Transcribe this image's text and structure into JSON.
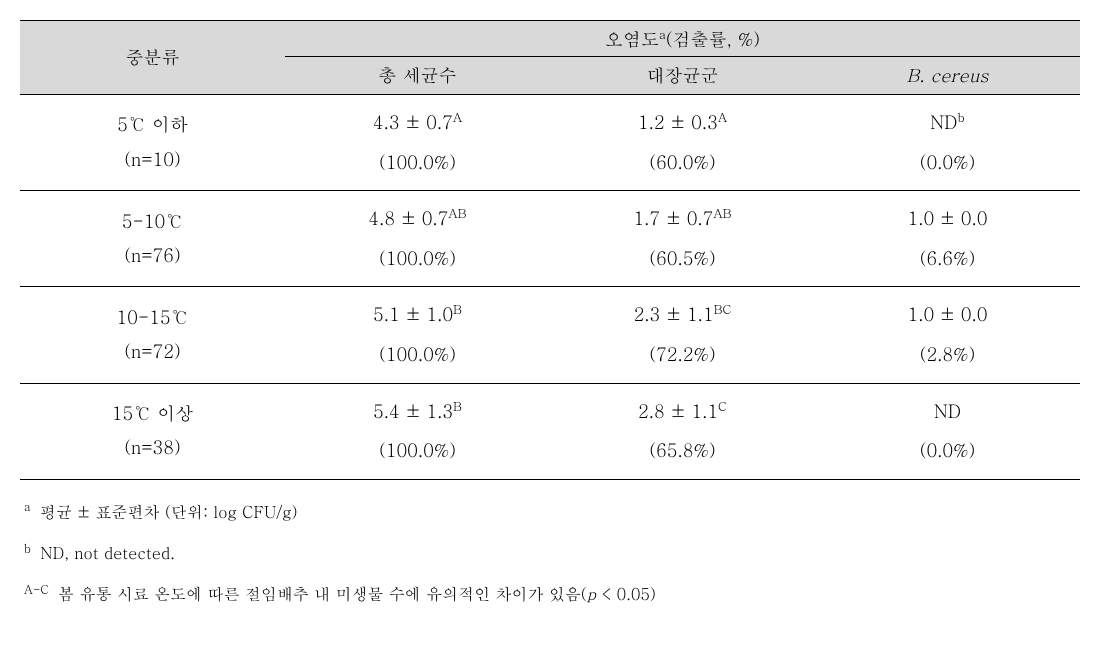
{
  "table": {
    "header": {
      "rowspan_label": "중분류",
      "group_label_pre": "오염도",
      "group_label_sup": "a",
      "group_label_post": "(검출률, %)",
      "sub1": "총 세균수",
      "sub2": "대장균군",
      "sub3_italic": "B. cereus"
    },
    "rows": [
      {
        "cat_line1": "5℃ 이하",
        "cat_line2": "(n=10)",
        "c1_val": "4.3 ± 0.7",
        "c1_sup": "A",
        "c1_pct": "(100.0%)",
        "c2_val": "1.2 ± 0.3",
        "c2_sup": "A",
        "c2_pct": "(60.0%)",
        "c3_val": "ND",
        "c3_sup": "b",
        "c3_pct": "(0.0%)"
      },
      {
        "cat_line1": "5-10℃",
        "cat_line2": "(n=76)",
        "c1_val": "4.8 ± 0.7",
        "c1_sup": "AB",
        "c1_pct": "(100.0%)",
        "c2_val": "1.7 ± 0.7",
        "c2_sup": "AB",
        "c2_pct": "(60.5%)",
        "c3_val": "1.0 ± 0.0",
        "c3_sup": "",
        "c3_pct": "(6.6%)"
      },
      {
        "cat_line1": "10-15℃",
        "cat_line2": "(n=72)",
        "c1_val": "5.1 ± 1.0",
        "c1_sup": "B",
        "c1_pct": "(100.0%)",
        "c2_val": "2.3 ± 1.1",
        "c2_sup": "BC",
        "c2_pct": "(72.2%)",
        "c3_val": "1.0 ± 0.0",
        "c3_sup": "",
        "c3_pct": "(2.8%)"
      },
      {
        "cat_line1": "15℃ 이상",
        "cat_line2": "(n=38)",
        "c1_val": "5.4 ± 1.3",
        "c1_sup": "B",
        "c1_pct": "(100.0%)",
        "c2_val": "2.8 ± 1.1",
        "c2_sup": "C",
        "c2_pct": "(65.8%)",
        "c3_val": "ND",
        "c3_sup": "",
        "c3_pct": "(0.0%)"
      }
    ]
  },
  "footnotes": {
    "a_sup": "a",
    "a_text": " 평균 ± 표준편차 (단위: log CFU/g)",
    "b_sup": "b",
    "b_text": " ND, not detected.",
    "ac_sup": "A-C",
    "ac_text_pre": " 봄 유통 시료 온도에 따른 절임배추 내 미생물 수에 유의적인 차이가 있음(",
    "ac_p": "p",
    "ac_text_post": " < 0.05)"
  },
  "colors": {
    "header_bg": "#d9d9d9",
    "border": "#000000",
    "text": "#000000",
    "bg": "#ffffff"
  },
  "col_widths": [
    "25%",
    "25%",
    "25%",
    "25%"
  ]
}
